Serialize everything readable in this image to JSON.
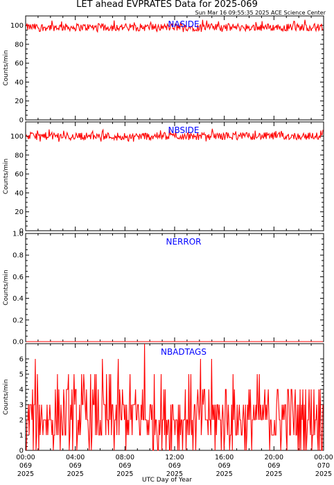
{
  "header": {
    "title": "LET ahead EVPRATES Data for 2025-069",
    "subtitle": "Sun Mar 16 09:55:35 2025 ACE Science Center"
  },
  "x_axis": {
    "title": "UTC Day of Year",
    "ticks": [
      {
        "time": "00:00",
        "day": "069",
        "year": "2025"
      },
      {
        "time": "04:00",
        "day": "069",
        "year": "2025"
      },
      {
        "time": "08:00",
        "day": "069",
        "year": "2025"
      },
      {
        "time": "12:00",
        "day": "069",
        "year": "2025"
      },
      {
        "time": "16:00",
        "day": "069",
        "year": "2025"
      },
      {
        "time": "20:00",
        "day": "069",
        "year": "2025"
      },
      {
        "time": "00:00",
        "day": "070",
        "year": "2025"
      }
    ]
  },
  "colors": {
    "trace": "#ff0000",
    "panel_label": "#0000ff",
    "axes": "#000000"
  },
  "chart_data": [
    {
      "type": "line",
      "series": [
        {
          "name": "NASIDE",
          "baseline": 98,
          "range": [
            93,
            106
          ]
        }
      ],
      "ylabel": "Counts/min",
      "ylim": [
        0,
        110
      ],
      "yticks": [
        "0",
        "20",
        "40",
        "60",
        "80",
        "100"
      ],
      "x_range_hours": [
        0,
        24
      ]
    },
    {
      "type": "line",
      "series": [
        {
          "name": "NBSIDE",
          "baseline": 100,
          "range": [
            94,
            108
          ]
        }
      ],
      "ylabel": "Counts/min",
      "ylim": [
        0,
        115
      ],
      "yticks": [
        "0",
        "20",
        "40",
        "60",
        "80",
        "100"
      ],
      "x_range_hours": [
        0,
        24
      ]
    },
    {
      "type": "line",
      "series": [
        {
          "name": "NERROR",
          "baseline": 0,
          "range": [
            0,
            0
          ]
        }
      ],
      "ylabel": "Counts/min",
      "ylim": [
        0,
        1
      ],
      "yticks": [
        "0.0",
        "0.2",
        "0.4",
        "0.6",
        "0.8",
        "1.0"
      ],
      "x_range_hours": [
        0,
        24
      ]
    },
    {
      "type": "line",
      "series": [
        {
          "name": "NBADTAGS",
          "baseline": 2,
          "range": [
            0,
            7
          ]
        }
      ],
      "ylabel": "Counts/min",
      "ylim": [
        0,
        7
      ],
      "yticks": [
        "0",
        "1",
        "2",
        "3",
        "4",
        "5",
        "6"
      ],
      "x_range_hours": [
        0,
        24
      ]
    }
  ]
}
